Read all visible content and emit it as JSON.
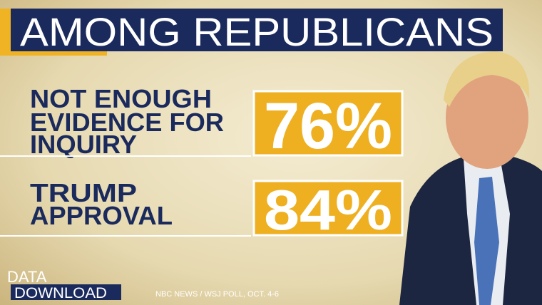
{
  "header": {
    "title": "AMONG REPUBLICANS"
  },
  "stats": [
    {
      "label": [
        "NOT ENOUGH",
        "EVIDENCE FOR",
        "INQUIRY"
      ],
      "value": "76%"
    },
    {
      "label": [
        "TRUMP",
        "APPROVAL"
      ],
      "value": "84%"
    }
  ],
  "footer": {
    "brand": [
      "DATA_",
      "DOWNLOAD"
    ],
    "source": "NBC NEWS / WSJ POLL, OCT. 4-6"
  }
}
